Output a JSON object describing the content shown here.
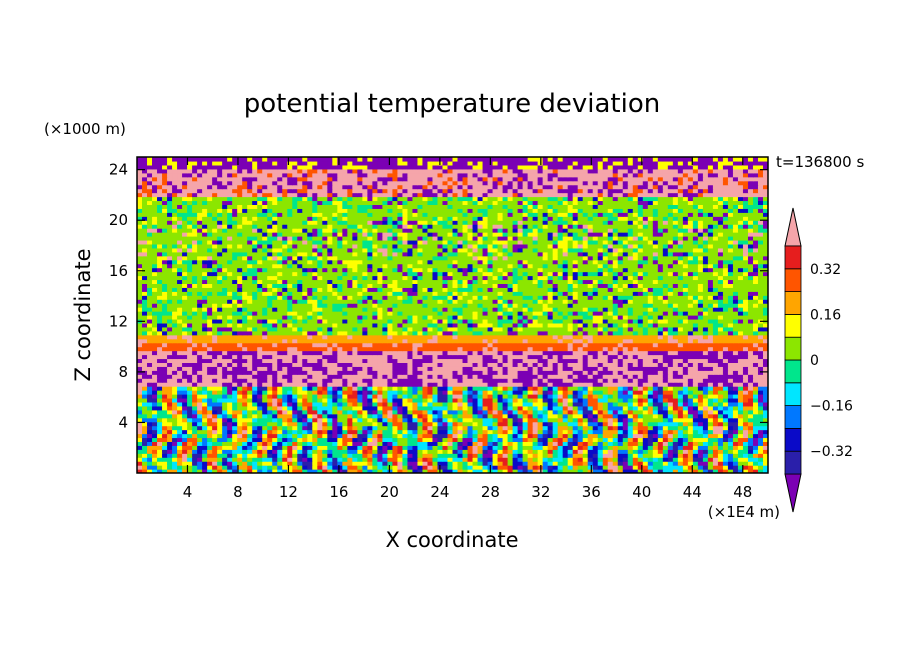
{
  "chart_data": {
    "type": "heatmap",
    "title": "potential temperature deviation",
    "xlabel": "X coordinate",
    "ylabel": "Z coordinate",
    "x_units": "(×1E4 m)",
    "y_units": "(×1000 m)",
    "time_label": "t=136800 s",
    "xlim": [
      0,
      50
    ],
    "ylim": [
      0,
      25
    ],
    "x_ticks": [
      4,
      8,
      12,
      16,
      20,
      24,
      28,
      32,
      36,
      40,
      44,
      48
    ],
    "y_ticks": [
      4,
      8,
      12,
      16,
      20,
      24
    ],
    "colorbar": {
      "levels": [
        -0.4,
        -0.32,
        -0.24,
        -0.16,
        -0.08,
        0,
        0.08,
        0.16,
        0.24,
        0.32,
        0.4
      ],
      "labels": [
        "0.32",
        "0.16",
        "0",
        "−0.16",
        "−0.32"
      ],
      "label_values": [
        0.32,
        0.16,
        0,
        -0.16,
        -0.32
      ],
      "colors": [
        "#7B00B4",
        "#2A1FAA",
        "#0A0AC8",
        "#0078FF",
        "#00E6FF",
        "#00E68C",
        "#8CE600",
        "#FFFF00",
        "#FFA500",
        "#FF5500",
        "#E61E1E",
        "#F5A5AA"
      ],
      "extend": "both"
    },
    "bands": [
      {
        "z_range": [
          24.2,
          25
        ],
        "dominant_value": -0.45,
        "description_color": "#7B00B4"
      },
      {
        "z_range": [
          22.0,
          24.2
        ],
        "dominant_value": 0.45,
        "description_color": "#F5A5AA"
      },
      {
        "z_range": [
          11.0,
          22.0
        ],
        "dominant_value": 0.04,
        "description_color": "#8CE600"
      },
      {
        "z_range": [
          9.8,
          11.0
        ],
        "dominant_value": 0.2,
        "description_color": "#FFFF00"
      },
      {
        "z_range": [
          7.0,
          9.8
        ],
        "dominant_value": 0.45,
        "description_color": "#F5A5AA"
      },
      {
        "z_range": [
          0,
          7.0
        ],
        "dominant_value": -0.05,
        "description_color": "#00E68C"
      }
    ]
  }
}
